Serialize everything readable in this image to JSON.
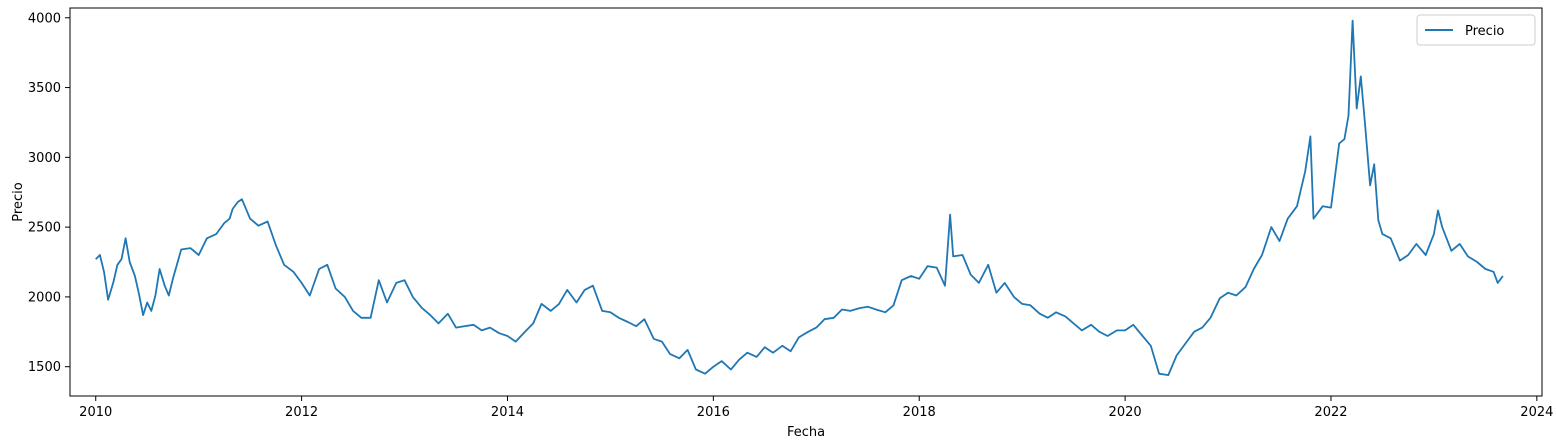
{
  "chart_data": {
    "type": "line",
    "title": "",
    "xlabel": "Fecha",
    "ylabel": "Precio",
    "xlim": [
      2009.75,
      2024.05
    ],
    "ylim": [
      1290,
      4070
    ],
    "x_ticks": [
      2010,
      2012,
      2014,
      2016,
      2018,
      2020,
      2022,
      2024
    ],
    "y_ticks": [
      1500,
      2000,
      2500,
      3000,
      3500,
      4000
    ],
    "grid": false,
    "legend": {
      "position": "top-right",
      "entries": [
        "Precio"
      ]
    },
    "colors": {
      "line": "#1f77b4"
    },
    "series": [
      {
        "name": "Precio",
        "x": [
          2010.0,
          2010.04,
          2010.08,
          2010.12,
          2010.17,
          2010.21,
          2010.25,
          2010.29,
          2010.33,
          2010.38,
          2010.42,
          2010.46,
          2010.5,
          2010.54,
          2010.58,
          2010.62,
          2010.67,
          2010.71,
          2010.75,
          2010.83,
          2010.92,
          2011.0,
          2011.08,
          2011.17,
          2011.25,
          2011.3,
          2011.33,
          2011.38,
          2011.42,
          2011.5,
          2011.58,
          2011.67,
          2011.75,
          2011.83,
          2011.92,
          2012.0,
          2012.08,
          2012.17,
          2012.25,
          2012.33,
          2012.42,
          2012.5,
          2012.58,
          2012.67,
          2012.75,
          2012.83,
          2012.92,
          2013.0,
          2013.08,
          2013.17,
          2013.25,
          2013.33,
          2013.42,
          2013.5,
          2013.58,
          2013.67,
          2013.75,
          2013.83,
          2013.92,
          2014.0,
          2014.08,
          2014.17,
          2014.25,
          2014.33,
          2014.42,
          2014.5,
          2014.58,
          2014.67,
          2014.75,
          2014.83,
          2014.92,
          2015.0,
          2015.08,
          2015.17,
          2015.25,
          2015.33,
          2015.42,
          2015.5,
          2015.58,
          2015.67,
          2015.75,
          2015.83,
          2015.92,
          2016.0,
          2016.08,
          2016.17,
          2016.25,
          2016.33,
          2016.42,
          2016.5,
          2016.58,
          2016.67,
          2016.75,
          2016.83,
          2016.92,
          2017.0,
          2017.08,
          2017.17,
          2017.25,
          2017.33,
          2017.42,
          2017.5,
          2017.58,
          2017.67,
          2017.75,
          2017.83,
          2017.92,
          2018.0,
          2018.08,
          2018.17,
          2018.25,
          2018.3,
          2018.33,
          2018.42,
          2018.5,
          2018.58,
          2018.67,
          2018.75,
          2018.83,
          2018.92,
          2019.0,
          2019.08,
          2019.17,
          2019.25,
          2019.33,
          2019.42,
          2019.5,
          2019.58,
          2019.67,
          2019.75,
          2019.83,
          2019.92,
          2020.0,
          2020.08,
          2020.17,
          2020.25,
          2020.33,
          2020.42,
          2020.5,
          2020.58,
          2020.67,
          2020.75,
          2020.83,
          2020.92,
          2021.0,
          2021.08,
          2021.17,
          2021.25,
          2021.33,
          2021.42,
          2021.5,
          2021.58,
          2021.67,
          2021.75,
          2021.8,
          2021.83,
          2021.92,
          2022.0,
          2022.08,
          2022.13,
          2022.17,
          2022.19,
          2022.21,
          2022.25,
          2022.29,
          2022.33,
          2022.38,
          2022.42,
          2022.46,
          2022.5,
          2022.58,
          2022.67,
          2022.75,
          2022.83,
          2022.92,
          2023.0,
          2023.04,
          2023.08,
          2023.17,
          2023.25,
          2023.33,
          2023.42,
          2023.5,
          2023.58,
          2023.62,
          2023.67
        ],
        "y": [
          2270,
          2300,
          2180,
          1980,
          2100,
          2230,
          2270,
          2420,
          2250,
          2150,
          2020,
          1870,
          1960,
          1900,
          2010,
          2200,
          2080,
          2010,
          2130,
          2340,
          2350,
          2300,
          2420,
          2450,
          2530,
          2560,
          2630,
          2680,
          2700,
          2560,
          2510,
          2540,
          2370,
          2230,
          2180,
          2100,
          2010,
          2200,
          2230,
          2060,
          2000,
          1900,
          1850,
          1850,
          2120,
          1960,
          2100,
          2120,
          2000,
          1920,
          1870,
          1810,
          1880,
          1780,
          1790,
          1800,
          1760,
          1780,
          1740,
          1720,
          1680,
          1750,
          1810,
          1950,
          1900,
          1950,
          2050,
          1960,
          2050,
          2080,
          1900,
          1890,
          1850,
          1820,
          1790,
          1840,
          1700,
          1680,
          1590,
          1560,
          1620,
          1480,
          1450,
          1500,
          1540,
          1480,
          1550,
          1600,
          1570,
          1640,
          1600,
          1650,
          1610,
          1710,
          1750,
          1780,
          1840,
          1850,
          1910,
          1900,
          1920,
          1930,
          1910,
          1890,
          1940,
          2120,
          2150,
          2130,
          2220,
          2210,
          2080,
          2590,
          2290,
          2300,
          2160,
          2100,
          2230,
          2030,
          2100,
          2000,
          1950,
          1940,
          1880,
          1850,
          1890,
          1860,
          1810,
          1760,
          1800,
          1750,
          1720,
          1760,
          1760,
          1800,
          1720,
          1650,
          1450,
          1440,
          1580,
          1660,
          1750,
          1780,
          1850,
          1990,
          2030,
          2010,
          2070,
          2200,
          2300,
          2500,
          2400,
          2560,
          2650,
          2900,
          3150,
          2560,
          2650,
          2640,
          3100,
          3130,
          3300,
          3630,
          3980,
          3350,
          3580,
          3250,
          2800,
          2950,
          2550,
          2450,
          2420,
          2260,
          2300,
          2380,
          2300,
          2450,
          2620,
          2500,
          2330,
          2380,
          2290,
          2250,
          2200,
          2180,
          2100,
          2150
        ]
      }
    ]
  }
}
